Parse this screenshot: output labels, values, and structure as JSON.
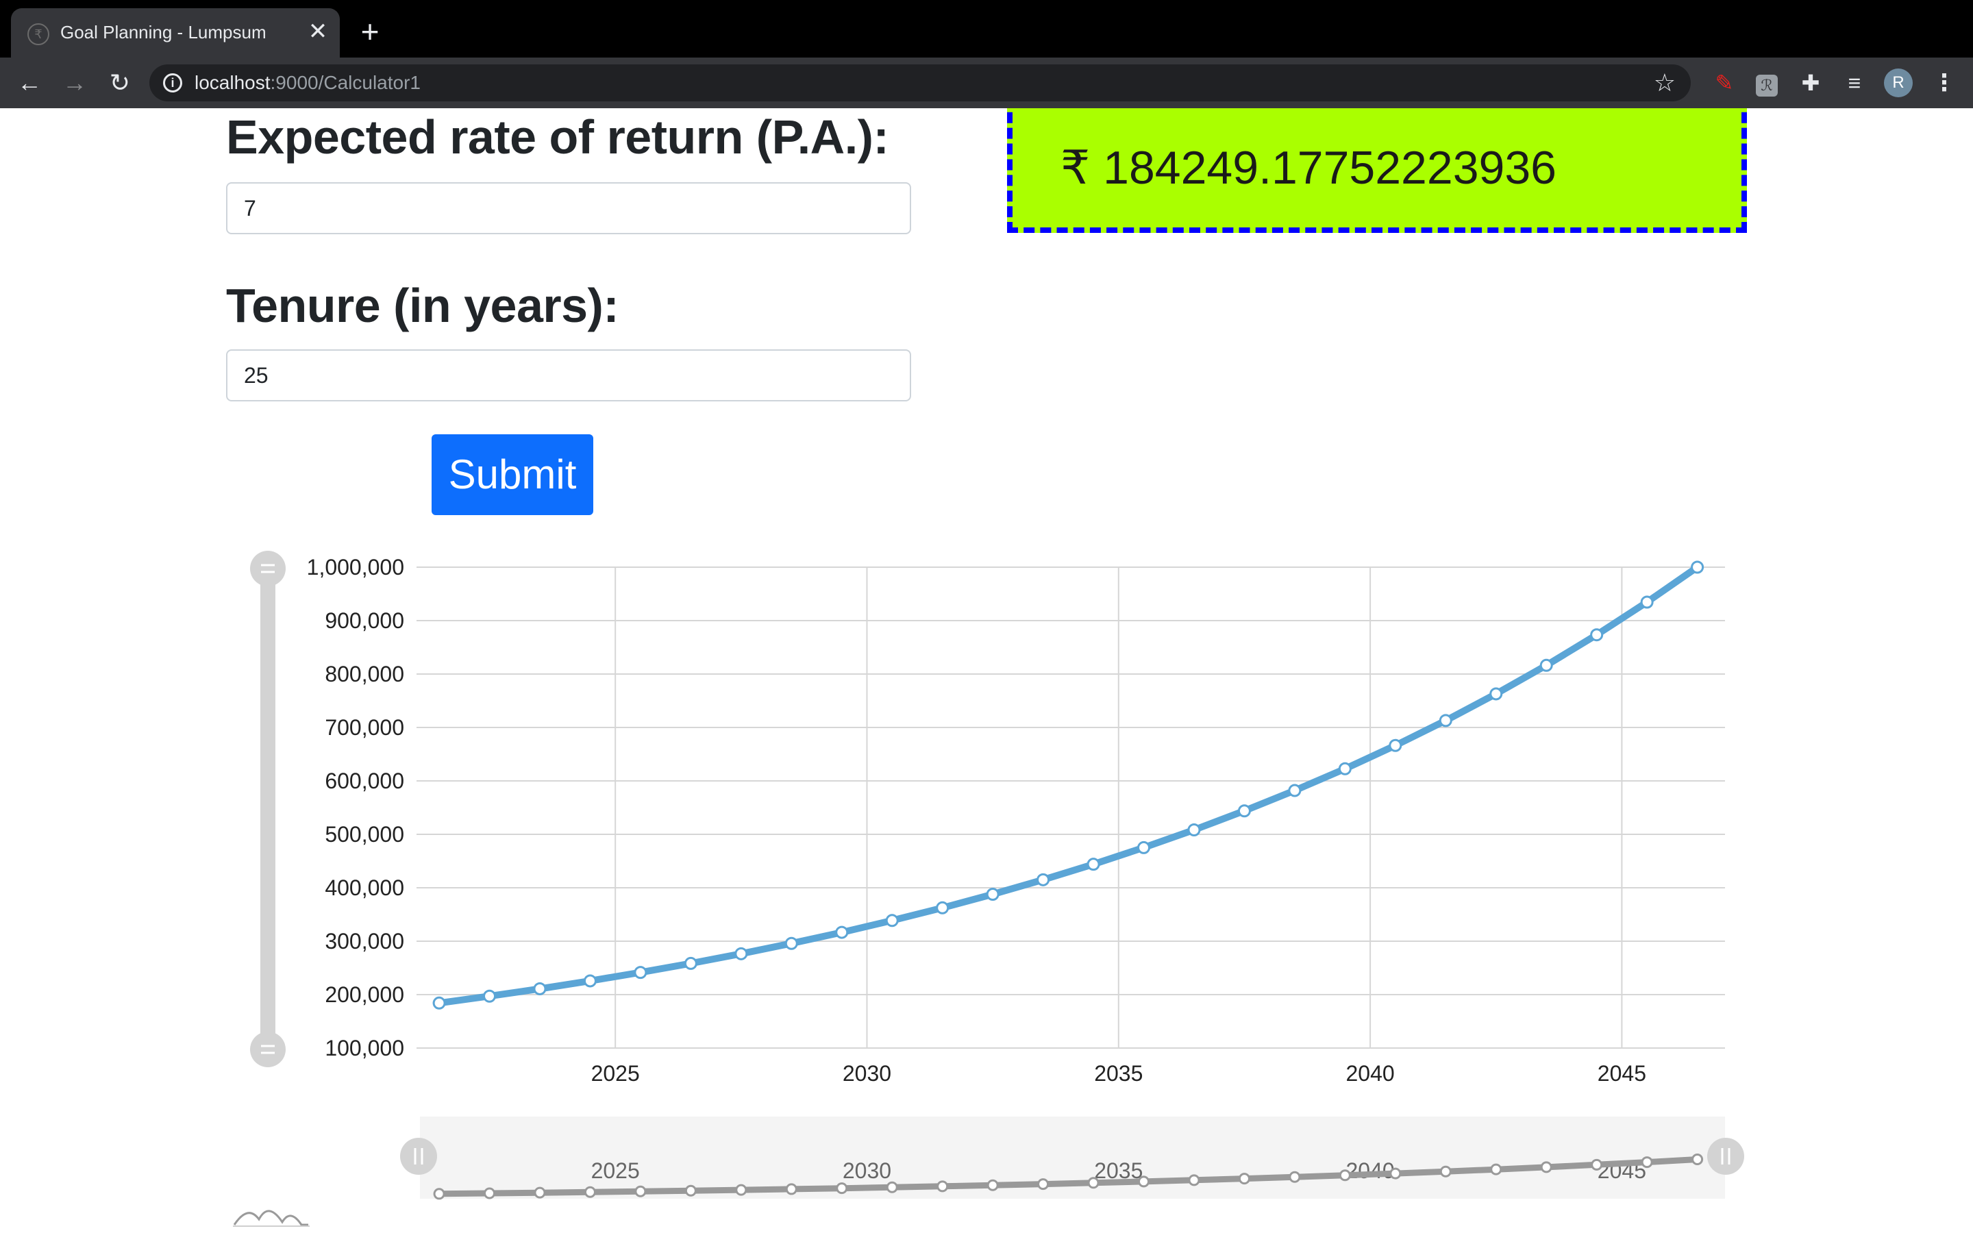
{
  "browser": {
    "tab_title": "Goal Planning - Lumpsum",
    "tab_close": "✕",
    "new_tab": "+",
    "url_host": "localhost",
    "url_rest": ":9000/Calculator1",
    "avatar_letter": "R",
    "icons": [
      "back-arrow-icon",
      "forward-arrow-icon",
      "reload-icon",
      "info-icon",
      "star-icon",
      "pen-extension-icon",
      "extension-icon",
      "puzzle-icon",
      "media-control-icon",
      "kebab-menu-icon"
    ]
  },
  "form": {
    "rate_label": "Expected rate of return (P.A.):",
    "rate_value": "7",
    "tenure_label": "Tenure (in years):",
    "tenure_value": "25",
    "submit_label": "Submit"
  },
  "result": {
    "value": "₹ 184249.17752223936",
    "background": "#aaff00",
    "border_color": "#0000ff"
  },
  "chart_data": {
    "type": "line",
    "title": "",
    "xlabel": "",
    "ylabel": "",
    "x_ticks": [
      "2025",
      "2030",
      "2035",
      "2040",
      "2045"
    ],
    "y_ticks": [
      "100,000",
      "200,000",
      "300,000",
      "400,000",
      "500,000",
      "600,000",
      "700,000",
      "800,000",
      "900,000",
      "1,000,000"
    ],
    "xlim": [
      2021.05,
      2047.05
    ],
    "ylim": [
      100000,
      1000000
    ],
    "grid": true,
    "series_color": "#5ba5d6",
    "navigator_color": "#999999",
    "series": [
      {
        "x": [
          2021.5,
          2022.5,
          2023.5,
          2024.5,
          2025.5,
          2026.5,
          2027.5,
          2028.5,
          2029.5,
          2030.5,
          2031.5,
          2032.5,
          2033.5,
          2034.5,
          2035.5,
          2036.5,
          2037.5,
          2038.5,
          2039.5,
          2040.5,
          2041.5,
          2042.5,
          2043.5,
          2044.5,
          2045.5,
          2046.5
        ],
        "values": [
          184249,
          197147,
          210947,
          225713,
          241513,
          258419,
          276508,
          295864,
          316574,
          338734,
          362445,
          387817,
          414964,
          444011,
          475092,
          508348,
          543933,
          582008,
          622748,
          666341,
          712984,
          762893,
          816295,
          873436,
          934576,
          1000000
        ]
      }
    ]
  }
}
